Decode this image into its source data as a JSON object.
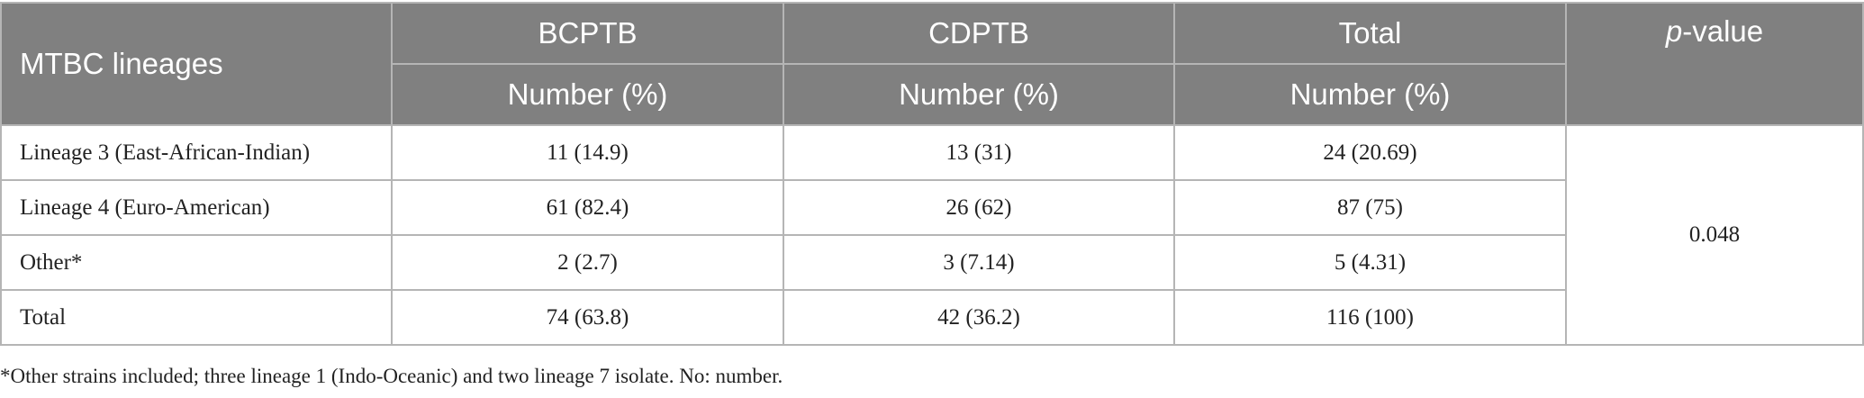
{
  "table": {
    "header": {
      "col1": "MTBC lineages",
      "col2": "BCPTB",
      "col3": "CDPTB",
      "col4": "Total",
      "col5_italic": "p",
      "col5_rest": "-value",
      "sub2": "Number (%)",
      "sub3": "Number (%)",
      "sub4": "Number (%)"
    },
    "rows": [
      {
        "lineage": "Lineage 3 (East-African-Indian)",
        "bcptb": "11 (14.9)",
        "cdptb": "13 (31)",
        "total": "24 (20.69)"
      },
      {
        "lineage": "Lineage 4 (Euro-American)",
        "bcptb": "61 (82.4)",
        "cdptb": "26 (62)",
        "total": "87 (75)"
      },
      {
        "lineage": "Other*",
        "bcptb": "2 (2.7)",
        "cdptb": "3 (7.14)",
        "total": "5 (4.31)"
      },
      {
        "lineage": "Total",
        "bcptb": "74 (63.8)",
        "cdptb": "42 (36.2)",
        "total": "116 (100)"
      }
    ],
    "p_value": "0.048"
  },
  "footnote": "*Other strains included; three lineage 1 (Indo-Oceanic) and two lineage 7 isolate. No: number."
}
